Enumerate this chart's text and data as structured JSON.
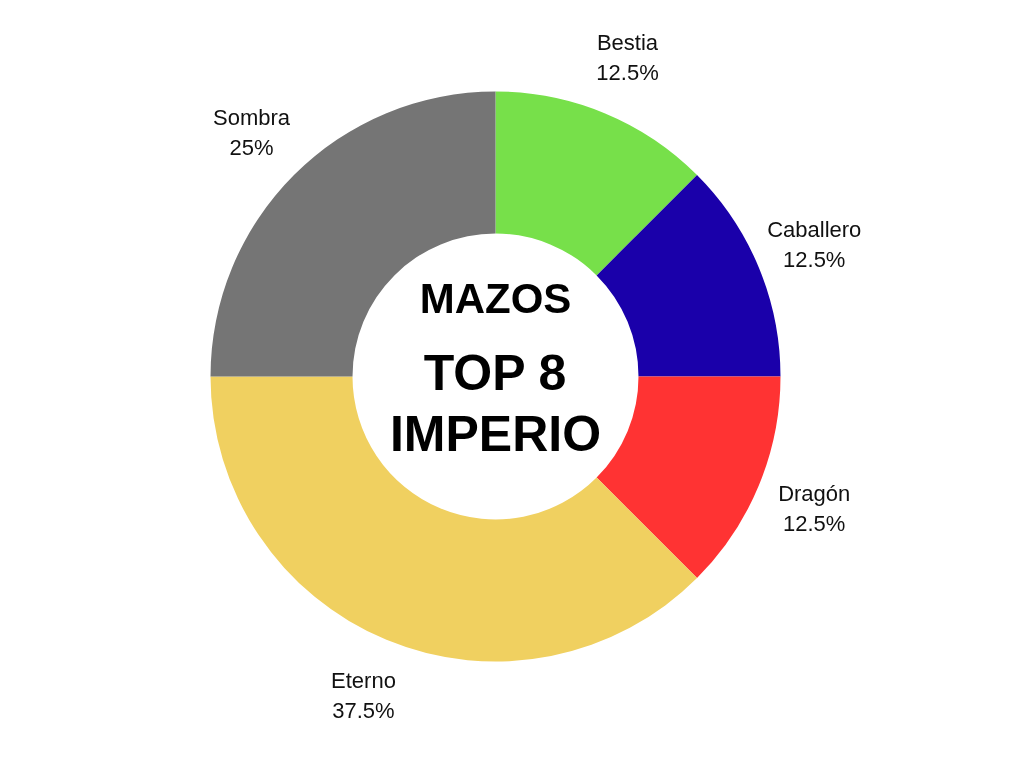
{
  "chart_data": {
    "type": "donut",
    "title": "MAZOS",
    "subtitle": "TOP 8\nIMPERIO",
    "categories": [
      "Bestia",
      "Caballero",
      "Dragón",
      "Eterno",
      "Sombra"
    ],
    "values": [
      12.5,
      12.5,
      12.5,
      37.5,
      25
    ],
    "value_labels": [
      "12.5%",
      "12.5%",
      "12.5%",
      "37.5%",
      "25%"
    ],
    "colors": [
      "#77e04a",
      "#1a00aa",
      "#ff3333",
      "#f0d060",
      "#757575"
    ]
  }
}
